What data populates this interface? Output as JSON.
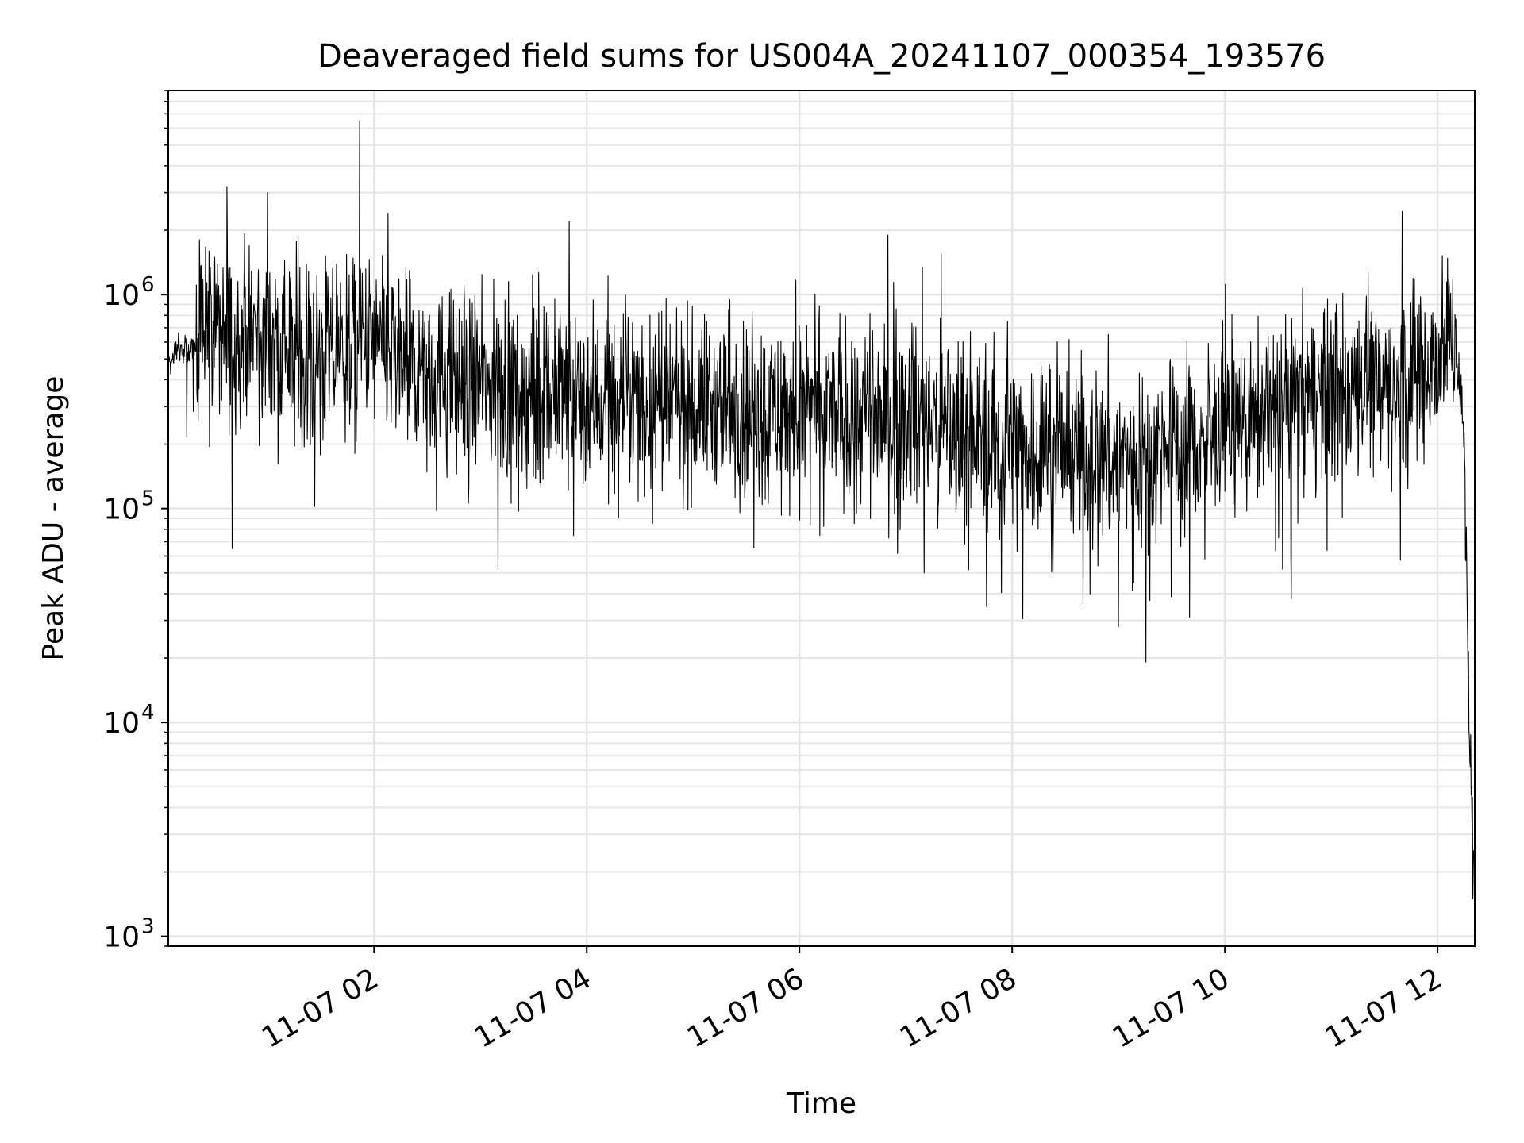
{
  "chart_data": {
    "type": "line",
    "title": "Deaveraged field sums for US004A_20241107_000354_193576",
    "xlabel": "Time",
    "ylabel": "Peak ADU - average",
    "yscale": "log",
    "ylim": [
      900,
      9000000
    ],
    "xlim": [
      "2024-11-07 00:03:54",
      "2024-11-07 12:21:00"
    ],
    "grid": true,
    "x_ticks": [
      {
        "value": "2024-11-07 02:00",
        "label": "11-07 02"
      },
      {
        "value": "2024-11-07 04:00",
        "label": "11-07 04"
      },
      {
        "value": "2024-11-07 06:00",
        "label": "11-07 06"
      },
      {
        "value": "2024-11-07 08:00",
        "label": "11-07 08"
      },
      {
        "value": "2024-11-07 10:00",
        "label": "11-07 10"
      },
      {
        "value": "2024-11-07 12:00",
        "label": "11-07 12"
      }
    ],
    "y_ticks": [
      {
        "value": 1000,
        "base": "10",
        "exp": "3"
      },
      {
        "value": 10000,
        "base": "10",
        "exp": "4"
      },
      {
        "value": 100000,
        "base": "10",
        "exp": "5"
      },
      {
        "value": 1000000,
        "base": "10",
        "exp": "6"
      }
    ],
    "series": [
      {
        "color": "#000000",
        "x": [
          "2024-11-07 00:04",
          "2024-11-07 00:10",
          "2024-11-07 00:15",
          "2024-11-07 00:20",
          "2024-11-07 00:25",
          "2024-11-07 00:30",
          "2024-11-07 00:35",
          "2024-11-07 00:40",
          "2024-11-07 00:45",
          "2024-11-07 00:55",
          "2024-11-07 01:05",
          "2024-11-07 01:15",
          "2024-11-07 01:25",
          "2024-11-07 01:35",
          "2024-11-07 01:45",
          "2024-11-07 01:52",
          "2024-11-07 02:00",
          "2024-11-07 02:10",
          "2024-11-07 02:20",
          "2024-11-07 02:30",
          "2024-11-07 02:45",
          "2024-11-07 03:00",
          "2024-11-07 03:15",
          "2024-11-07 03:30",
          "2024-11-07 03:45",
          "2024-11-07 04:00",
          "2024-11-07 04:15",
          "2024-11-07 04:30",
          "2024-11-07 04:45",
          "2024-11-07 05:00",
          "2024-11-07 05:15",
          "2024-11-07 05:30",
          "2024-11-07 05:45",
          "2024-11-07 06:00",
          "2024-11-07 06:15",
          "2024-11-07 06:30",
          "2024-11-07 06:45",
          "2024-11-07 07:00",
          "2024-11-07 07:15",
          "2024-11-07 07:30",
          "2024-11-07 07:45",
          "2024-11-07 08:00",
          "2024-11-07 08:15",
          "2024-11-07 08:30",
          "2024-11-07 08:45",
          "2024-11-07 09:00",
          "2024-11-07 09:15",
          "2024-11-07 09:30",
          "2024-11-07 09:45",
          "2024-11-07 10:00",
          "2024-11-07 10:15",
          "2024-11-07 10:30",
          "2024-11-07 10:45",
          "2024-11-07 11:00",
          "2024-11-07 11:15",
          "2024-11-07 11:30",
          "2024-11-07 11:45",
          "2024-11-07 12:00",
          "2024-11-07 12:10",
          "2024-11-07 12:15",
          "2024-11-07 12:18",
          "2024-11-07 12:20",
          "2024-11-07 12:21"
        ],
        "y": [
          480000,
          600000,
          550000,
          560000,
          900000,
          700000,
          600000,
          650000,
          700000,
          650000,
          600000,
          550000,
          520000,
          500000,
          550000,
          600000,
          580000,
          500000,
          450000,
          420000,
          400000,
          380000,
          360000,
          350000,
          340000,
          330000,
          320000,
          310000,
          300000,
          300000,
          310000,
          300000,
          290000,
          280000,
          280000,
          270000,
          270000,
          260000,
          250000,
          240000,
          220000,
          200000,
          190000,
          190000,
          180000,
          170000,
          180000,
          190000,
          200000,
          220000,
          260000,
          300000,
          330000,
          360000,
          380000,
          400000,
          420000,
          500000,
          700000,
          200000,
          8000,
          3000,
          2500
        ],
        "peaks": [
          {
            "x": "2024-11-07 00:37",
            "y": 3200000
          },
          {
            "x": "2024-11-07 01:00",
            "y": 3000000
          },
          {
            "x": "2024-11-07 01:52",
            "y": 6500000
          },
          {
            "x": "2024-11-07 02:08",
            "y": 2400000
          },
          {
            "x": "2024-11-07 03:50",
            "y": 2200000
          },
          {
            "x": "2024-11-07 06:50",
            "y": 1900000
          },
          {
            "x": "2024-11-07 07:20",
            "y": 1550000
          },
          {
            "x": "2024-11-07 11:40",
            "y": 2450000
          },
          {
            "x": "2024-11-07 00:40",
            "y": 65000
          },
          {
            "x": "2024-11-07 03:10",
            "y": 52000
          },
          {
            "x": "2024-11-07 08:40",
            "y": 36000
          },
          {
            "x": "2024-11-07 09:00",
            "y": 28000
          },
          {
            "x": "2024-11-07 09:40",
            "y": 31000
          },
          {
            "x": "2024-11-07 12:20",
            "y": 1500
          }
        ]
      }
    ]
  }
}
